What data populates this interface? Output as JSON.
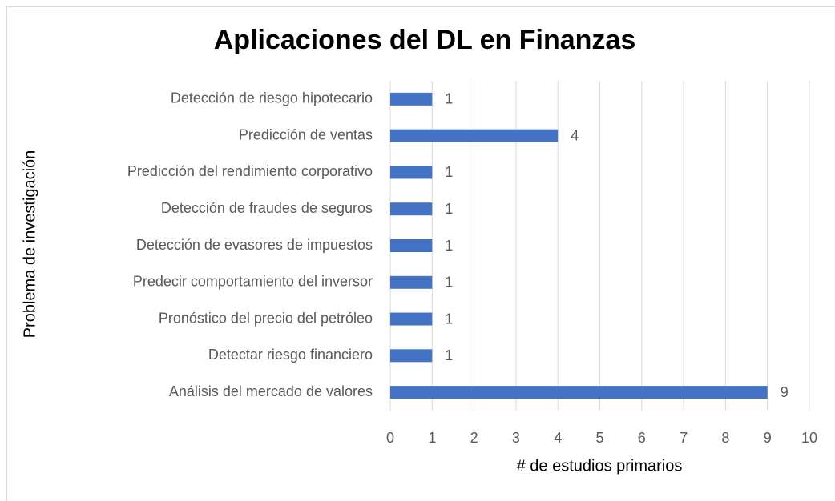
{
  "chart_data": {
    "type": "bar",
    "orientation": "horizontal",
    "title": "Aplicaciones del DL en Finanzas",
    "x_label": "# de estudios primarios",
    "y_label": "Problema de investigación",
    "categories": [
      "Detección de riesgo hipotecario",
      "Predicción de ventas",
      "Predicción del rendimiento corporativo",
      "Detección de fraudes de seguros",
      "Detección de evasores de impuestos",
      "Predecir comportamiento del inversor",
      "Pronóstico del precio del petróleo",
      "Detectar riesgo financiero",
      "Análisis del mercado de valores"
    ],
    "values": [
      1,
      4,
      1,
      1,
      1,
      1,
      1,
      1,
      9
    ],
    "color": "#4472c4",
    "xlim": [
      0,
      10
    ],
    "xticks": [
      0,
      1,
      2,
      3,
      4,
      5,
      6,
      7,
      8,
      9,
      10
    ],
    "grid": true
  }
}
